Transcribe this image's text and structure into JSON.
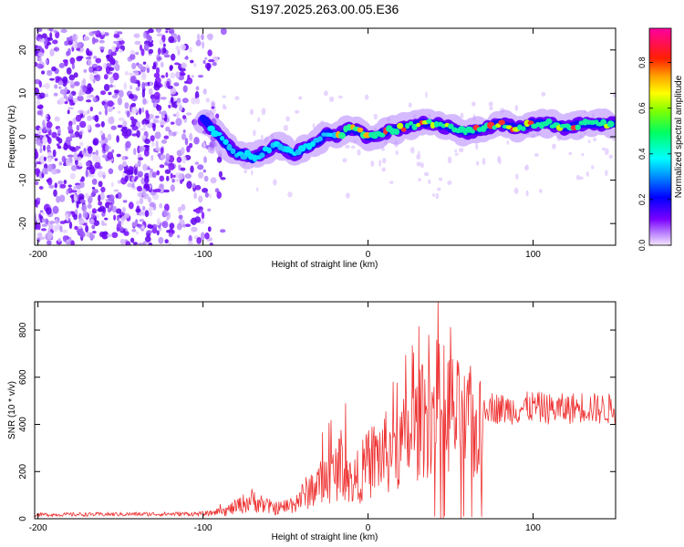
{
  "title": "S197.2025.263.00.05.E36",
  "chart_data": [
    {
      "type": "heatmap",
      "id": "spectrogram",
      "xlabel": "Height of straight line (km)",
      "ylabel": "Frequency (Hz)",
      "xlim": [
        -202,
        150
      ],
      "ylim": [
        -25,
        25
      ],
      "xticks": [
        -200,
        -100,
        0,
        100
      ],
      "yticks": [
        -20,
        -10,
        0,
        10,
        20
      ],
      "xtick_labels": [
        "-200",
        "-100",
        "0",
        "100"
      ],
      "ytick_labels": [
        "-20",
        "-10",
        "0",
        "10",
        "20"
      ],
      "ridge": {
        "x": [
          -100,
          -95,
          -90,
          -85,
          -80,
          -75,
          -70,
          -65,
          -60,
          -55,
          -50,
          -45,
          -40,
          -35,
          -30,
          -25,
          -20,
          -15,
          -10,
          -5,
          0,
          10,
          20,
          30,
          40,
          50,
          60,
          70,
          80,
          90,
          100,
          110,
          120,
          130,
          140,
          150
        ],
        "y": [
          4,
          2,
          0,
          -2,
          -4,
          -4,
          -5,
          -4,
          -3,
          -2,
          -3,
          -4,
          -3,
          -2,
          -1,
          1,
          0,
          1,
          2,
          1,
          0,
          1,
          2,
          3,
          3,
          2,
          1,
          2,
          3,
          2,
          3,
          3,
          2,
          3,
          3,
          3
        ]
      },
      "colorbar": {
        "label": "Normalized spectral amplitude",
        "ticks": [
          0.0,
          0.2,
          0.4,
          0.6,
          0.8
        ],
        "tick_labels": [
          "0.0",
          "0.2",
          "0.4",
          "0.6",
          "0.8"
        ],
        "range": [
          0,
          0.95
        ]
      }
    },
    {
      "type": "line",
      "id": "snr",
      "xlabel": "Height of straight line (km)",
      "ylabel": "SNR (10 * v/v)",
      "xlim": [
        -202,
        150
      ],
      "ylim": [
        0,
        920
      ],
      "xticks": [
        -200,
        -100,
        0,
        100
      ],
      "yticks": [
        0,
        200,
        400,
        600,
        800
      ],
      "xtick_labels": [
        "-200",
        "-100",
        "0",
        "100"
      ],
      "ytick_labels": [
        "0",
        "200",
        "400",
        "600",
        "800"
      ],
      "color": "#ee3333",
      "envelope": {
        "x": [
          -202,
          -100,
          -95,
          -90,
          -85,
          -80,
          -75,
          -70,
          -65,
          -60,
          -55,
          -50,
          -45,
          -40,
          -35,
          -30,
          -25,
          -20,
          -18,
          -15,
          -12,
          -10,
          -5,
          0,
          5,
          10,
          15,
          20,
          25,
          30,
          35,
          40,
          45,
          50,
          55,
          60,
          65,
          70,
          75,
          80,
          90,
          100,
          110,
          120,
          130,
          140,
          150
        ],
        "y": [
          18,
          22,
          25,
          35,
          50,
          70,
          90,
          110,
          90,
          70,
          60,
          70,
          90,
          130,
          170,
          200,
          230,
          260,
          330,
          320,
          250,
          200,
          260,
          320,
          360,
          380,
          390,
          420,
          460,
          520,
          560,
          620,
          640,
          600,
          560,
          520,
          500,
          490,
          480,
          470,
          470,
          480,
          470,
          470,
          480,
          470,
          470
        ]
      }
    }
  ]
}
